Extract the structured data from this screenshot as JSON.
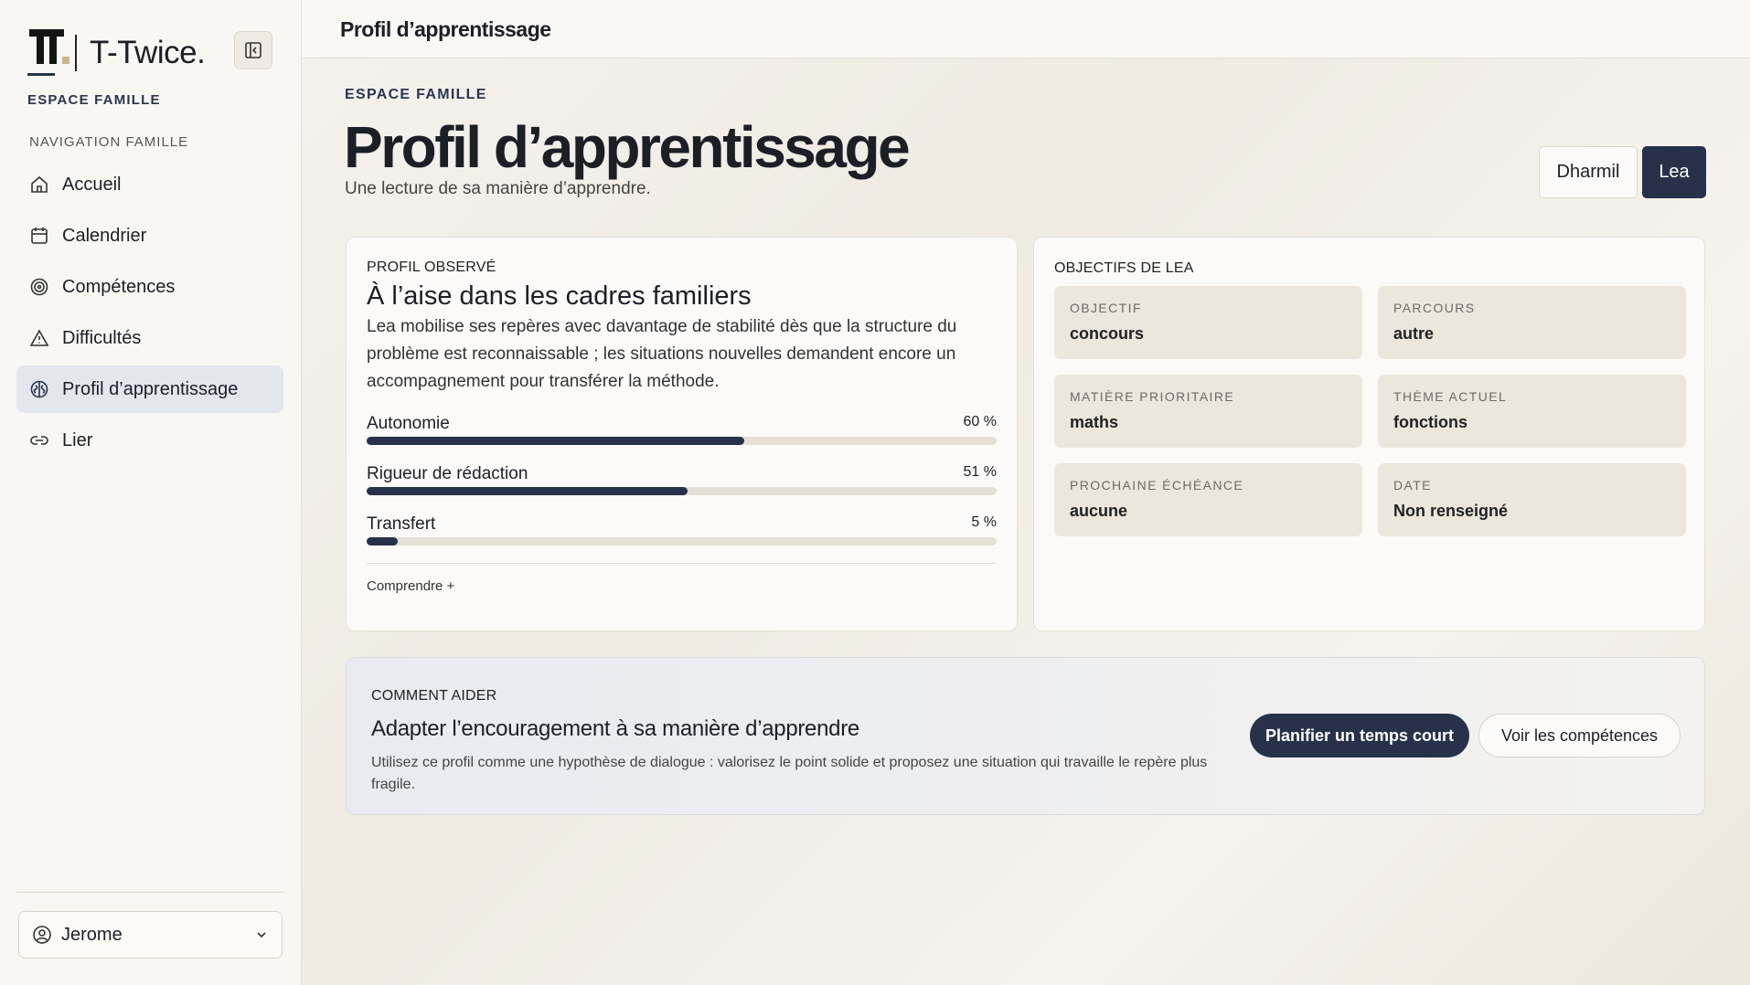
{
  "sidebar": {
    "brand": "T-Twice.",
    "section": "ESPACE FAMILLE",
    "nav_heading": "NAVIGATION FAMILLE",
    "nav": [
      {
        "label": "Accueil"
      },
      {
        "label": "Calendrier"
      },
      {
        "label": "Compétences"
      },
      {
        "label": "Difficultés"
      },
      {
        "label": "Profil d’apprentissage"
      },
      {
        "label": "Lier"
      }
    ],
    "user": "Jerome"
  },
  "header": {
    "title": "Profil d’apprentissage"
  },
  "page": {
    "eyebrow": "ESPACE FAMILLE",
    "title": "Profil d’apprentissage",
    "subtitle": "Une lecture de sa manière d’apprendre.",
    "children": [
      "Dharmil",
      "Lea"
    ]
  },
  "profile": {
    "heading": "PROFIL OBSERVÉ",
    "title": "À l’aise dans les cadres familiers",
    "description": "Lea mobilise ses repères avec davantage de stabilité dès que la structure du problème est reconnaissable ; les situations nouvelles demandent encore un accompagnement pour transférer la méthode.",
    "metrics": [
      {
        "label": "Autonomie",
        "value": 60,
        "value_label": "60 %"
      },
      {
        "label": "Rigueur de rédaction",
        "value": 51,
        "value_label": "51 %"
      },
      {
        "label": "Transfert",
        "value": 5,
        "value_label": "5 %"
      }
    ],
    "max": 100,
    "link": "Comprendre +"
  },
  "objectives": {
    "heading": "OBJECTIFS DE LEA",
    "items": [
      {
        "label": "OBJECTIF",
        "value": "concours"
      },
      {
        "label": "PARCOURS",
        "value": "autre"
      },
      {
        "label": "MATIÈRE PRIORITAIRE",
        "value": "maths"
      },
      {
        "label": "THÈME ACTUEL",
        "value": "fonctions"
      },
      {
        "label": "PROCHAINE ÉCHÉANCE",
        "value": "aucune"
      },
      {
        "label": "DATE",
        "value": "Non renseigné"
      }
    ]
  },
  "help": {
    "heading": "COMMENT AIDER",
    "title": "Adapter l’encouragement à sa manière d’apprendre",
    "text": "Utilisez ce profil comme une hypothèse de dialogue : valorisez le point solide et proposez une situation qui travaille le repère plus fragile.",
    "buttons": [
      "Planifier un temps court",
      "Voir les compétences"
    ]
  }
}
